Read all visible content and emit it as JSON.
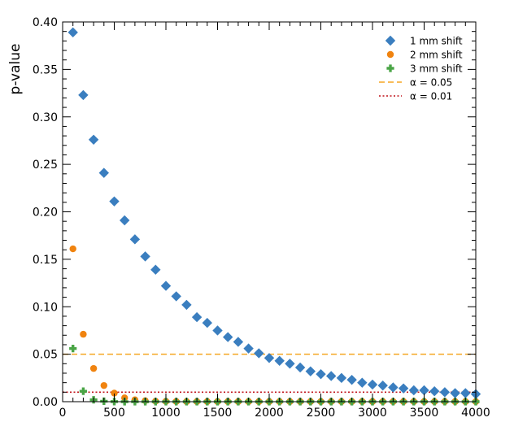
{
  "chart_data": {
    "type": "scatter",
    "title": "",
    "xlabel": "",
    "ylabel": "p-value",
    "xlim": [
      0,
      4000
    ],
    "ylim": [
      0,
      0.4
    ],
    "xticks": [
      0,
      500,
      1000,
      1500,
      2000,
      2500,
      3000,
      3500,
      4000
    ],
    "yticks": [
      0.0,
      0.05,
      0.1,
      0.15,
      0.2,
      0.25,
      0.3,
      0.35,
      0.4
    ],
    "grid": false,
    "legend_position": "top-right",
    "series": [
      {
        "name": "1 mm shift",
        "marker": "diamond",
        "color": "#3a7ebf",
        "x": [
          100,
          200,
          300,
          400,
          500,
          600,
          700,
          800,
          900,
          1000,
          1100,
          1200,
          1300,
          1400,
          1500,
          1600,
          1700,
          1800,
          1900,
          2000,
          2100,
          2200,
          2300,
          2400,
          2500,
          2600,
          2700,
          2800,
          2900,
          3000,
          3100,
          3200,
          3300,
          3400,
          3500,
          3600,
          3700,
          3800,
          3900,
          4000
        ],
        "y": [
          0.389,
          0.323,
          0.276,
          0.241,
          0.211,
          0.191,
          0.171,
          0.153,
          0.139,
          0.122,
          0.111,
          0.102,
          0.089,
          0.083,
          0.075,
          0.068,
          0.063,
          0.056,
          0.051,
          0.046,
          0.043,
          0.04,
          0.036,
          0.032,
          0.029,
          0.027,
          0.025,
          0.023,
          0.02,
          0.018,
          0.017,
          0.015,
          0.014,
          0.012,
          0.012,
          0.011,
          0.01,
          0.009,
          0.009,
          0.008
        ]
      },
      {
        "name": "2 mm shift",
        "marker": "circle",
        "color": "#f0830f",
        "x": [
          100,
          200,
          300,
          400,
          500,
          600,
          700,
          800,
          900,
          1000,
          1100,
          1200,
          1300,
          1400,
          1500,
          1600,
          1700,
          1800,
          1900,
          2000,
          2100,
          2200,
          2300,
          2400,
          2500,
          2600,
          2700,
          2800,
          2900,
          3000,
          3100,
          3200,
          3300,
          3400,
          3500,
          3600,
          3700,
          3800,
          3900,
          4000
        ],
        "y": [
          0.161,
          0.071,
          0.035,
          0.017,
          0.009,
          0.004,
          0.002,
          0.001,
          0.0005,
          0.0003,
          0.0002,
          0.0001,
          0.0001,
          0.0001,
          0.0001,
          0.0001,
          0.0001,
          0.0001,
          0.0001,
          0.0001,
          0.0001,
          0.0001,
          0.0001,
          0.0001,
          0.0001,
          0.0001,
          0.0001,
          0.0001,
          0.0001,
          0.0001,
          0.0001,
          0.0001,
          0.0001,
          0.0001,
          0.0001,
          0.0001,
          0.0001,
          0.0001,
          0.0001,
          0.0001
        ]
      },
      {
        "name": "3 mm shift",
        "marker": "plus",
        "color": "#4aa546",
        "x": [
          100,
          200,
          300,
          400,
          500,
          600,
          700,
          800,
          900,
          1000,
          1100,
          1200,
          1300,
          1400,
          1500,
          1600,
          1700,
          1800,
          1900,
          2000,
          2100,
          2200,
          2300,
          2400,
          2500,
          2600,
          2700,
          2800,
          2900,
          3000,
          3100,
          3200,
          3300,
          3400,
          3500,
          3600,
          3700,
          3800,
          3900,
          4000
        ],
        "y": [
          0.056,
          0.011,
          0.002,
          0.0005,
          0.0001,
          0,
          0,
          0,
          0,
          0,
          0,
          0,
          0,
          0,
          0,
          0,
          0,
          0,
          0,
          0,
          0,
          0,
          0,
          0,
          0,
          0,
          0,
          0,
          0,
          0,
          0,
          0,
          0,
          0,
          0,
          0,
          0,
          0,
          0,
          0
        ]
      }
    ],
    "reference_lines": [
      {
        "name": "α = 0.05",
        "y": 0.05,
        "color": "#f5a623",
        "style": "dashed"
      },
      {
        "name": "α = 0.01",
        "y": 0.01,
        "color": "#c0121a",
        "style": "dotted"
      }
    ]
  }
}
